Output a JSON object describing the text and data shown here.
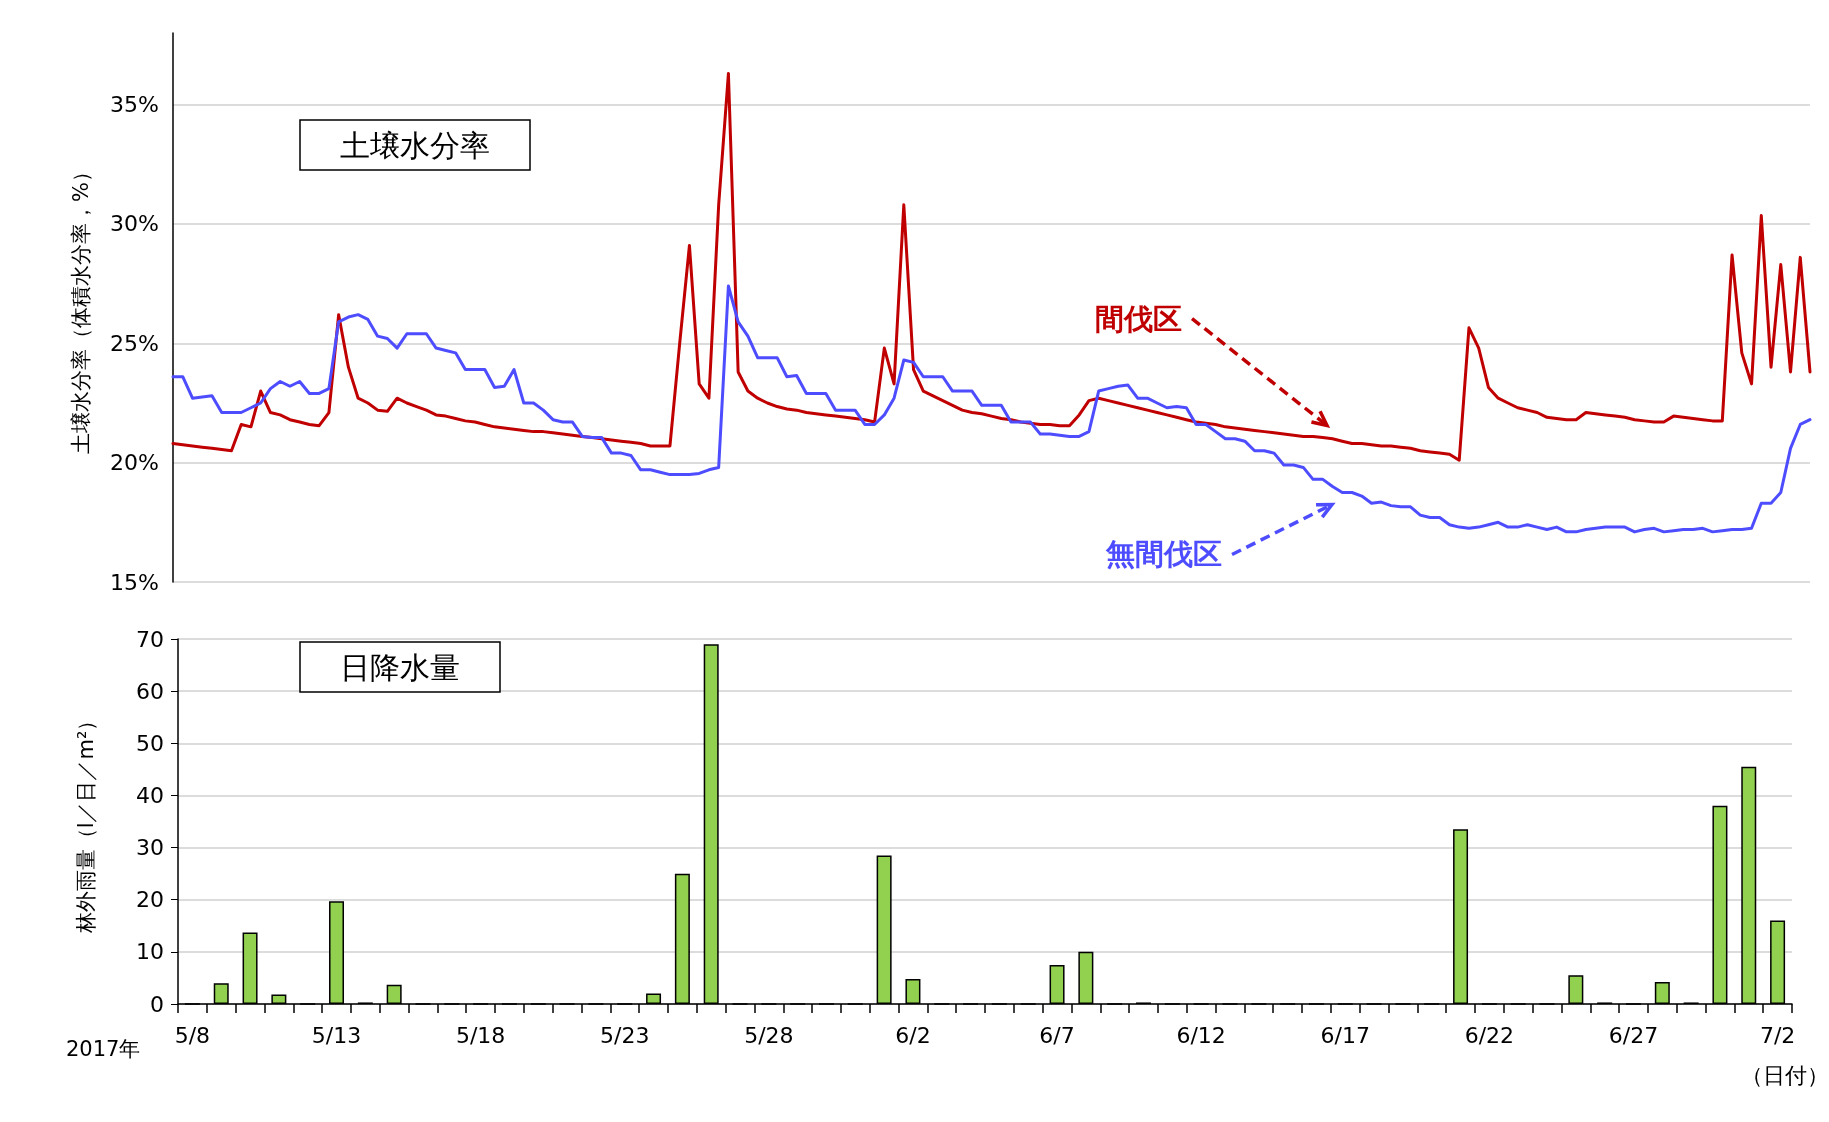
{
  "chart_data": [
    {
      "type": "line",
      "title": "土壌水分率",
      "ylabel": "土壌水分率（体積水分率，%）",
      "categories": [
        null,
        null,
        null,
        null,
        null,
        null,
        null,
        null,
        null,
        null,
        null,
        null,
        null,
        null,
        null,
        null,
        null,
        null,
        null,
        null,
        null,
        null,
        null,
        null,
        null,
        null,
        null,
        null,
        null,
        null,
        null,
        null,
        null,
        null,
        null,
        null,
        null,
        null,
        null,
        null,
        null,
        null,
        null,
        null,
        null,
        null,
        null,
        null,
        null,
        null,
        null,
        null,
        null,
        null,
        null,
        null,
        null,
        null,
        null,
        null,
        null,
        null,
        null,
        null,
        null,
        null,
        null,
        null,
        null,
        null,
        null,
        null,
        null,
        null,
        null,
        null,
        null,
        null,
        null,
        null,
        null,
        null,
        null,
        null,
        null,
        null,
        null,
        null,
        null,
        null,
        null,
        null,
        null,
        null,
        null,
        null,
        null,
        null,
        null,
        null,
        null,
        null,
        null,
        null,
        null,
        null,
        null,
        null,
        null,
        null,
        null,
        null,
        null,
        null,
        null,
        null,
        null,
        null,
        null,
        null,
        null,
        null,
        null,
        null,
        null,
        null,
        null,
        null,
        null,
        null,
        null,
        null,
        null,
        null,
        null,
        null,
        null,
        null,
        null,
        null,
        null,
        null,
        null,
        null,
        null,
        null,
        null,
        null,
        null,
        null,
        null,
        null,
        null,
        null,
        null,
        null,
        null,
        null,
        null,
        null,
        null,
        null,
        null,
        null,
        null,
        null,
        null,
        null,
        null
      ],
      "ylim": [
        15,
        38
      ],
      "yticks": [
        {
          "value": 15,
          "label": "15%"
        },
        {
          "value": 20,
          "label": "20%"
        },
        {
          "value": 25,
          "label": "25%"
        },
        {
          "value": 30,
          "label": "30%"
        },
        {
          "value": 35,
          "label": "35%"
        }
      ],
      "tick_labels": "y",
      "grid": "y",
      "legend": false,
      "line_style": "solid",
      "series": [
        {
          "name": "間伐区",
          "color": "#c00000",
          "values": [
            20.8,
            20.75,
            20.7,
            20.65,
            20.6,
            20.55,
            20.5,
            21.6,
            21.5,
            23.0,
            22.1,
            22.0,
            21.8,
            21.7,
            21.6,
            21.55,
            22.1,
            26.2,
            24.0,
            22.7,
            22.5,
            22.2,
            22.15,
            22.7,
            22.5,
            22.35,
            22.2,
            22.0,
            21.95,
            21.85,
            21.75,
            21.7,
            21.6,
            21.5,
            21.45,
            21.4,
            21.35,
            21.3,
            21.3,
            21.25,
            21.2,
            21.15,
            21.1,
            21.05,
            21.0,
            20.95,
            20.9,
            20.85,
            20.8,
            20.7,
            20.7,
            20.7,
            25.0,
            29.1,
            23.3,
            22.7,
            30.8,
            36.3,
            23.8,
            23.0,
            22.7,
            22.5,
            22.35,
            22.25,
            22.2,
            22.1,
            22.05,
            22.0,
            21.95,
            21.9,
            21.85,
            21.8,
            21.7,
            24.8,
            23.3,
            30.8,
            23.9,
            23.0,
            22.8,
            22.6,
            22.4,
            22.2,
            22.1,
            22.05,
            21.95,
            21.85,
            21.8,
            21.7,
            21.65,
            21.6,
            21.6,
            21.55,
            21.55,
            22.0,
            22.6,
            22.7,
            22.6,
            22.5,
            22.4,
            22.3,
            22.2,
            22.1,
            22.0,
            21.9,
            21.8,
            21.7,
            21.65,
            21.6,
            21.5,
            21.45,
            21.4,
            21.35,
            21.3,
            21.25,
            21.2,
            21.15,
            21.1,
            21.1,
            21.05,
            21.0,
            20.9,
            20.8,
            20.8,
            20.75,
            20.7,
            20.7,
            20.65,
            20.6,
            20.5,
            20.45,
            20.4,
            20.35,
            20.1,
            25.65,
            24.8,
            23.15,
            22.7,
            22.5,
            22.3,
            22.2,
            22.1,
            21.9,
            21.85,
            21.8,
            21.8,
            22.1,
            22.05,
            22.0,
            21.95,
            21.9,
            21.8,
            21.75,
            21.7,
            21.7,
            21.95,
            21.9,
            21.85,
            21.8,
            21.75,
            21.75,
            28.7,
            24.6,
            23.3,
            30.35,
            24.0,
            28.3,
            23.8,
            28.6,
            23.8
          ]
        },
        {
          "name": "無間伐区",
          "color": "#4d4dff",
          "values": [
            23.6,
            23.6,
            22.7,
            22.75,
            22.8,
            22.1,
            22.1,
            22.1,
            22.3,
            22.5,
            23.1,
            23.4,
            23.2,
            23.4,
            22.9,
            22.9,
            23.1,
            25.9,
            26.1,
            26.2,
            26.0,
            25.3,
            25.2,
            24.8,
            25.4,
            25.4,
            25.4,
            24.8,
            24.7,
            24.6,
            23.9,
            23.9,
            23.9,
            23.15,
            23.2,
            23.9,
            22.5,
            22.5,
            22.2,
            21.8,
            21.7,
            21.7,
            21.1,
            21.05,
            21.05,
            20.4,
            20.4,
            20.3,
            19.7,
            19.7,
            19.6,
            19.5,
            19.5,
            19.5,
            19.55,
            19.7,
            19.8,
            27.4,
            25.9,
            25.3,
            24.4,
            24.4,
            24.4,
            23.6,
            23.65,
            22.9,
            22.9,
            22.9,
            22.2,
            22.2,
            22.2,
            21.6,
            21.6,
            22.0,
            22.7,
            24.3,
            24.2,
            23.6,
            23.6,
            23.6,
            23.0,
            23.0,
            23.0,
            22.4,
            22.4,
            22.4,
            21.7,
            21.7,
            21.7,
            21.2,
            21.2,
            21.15,
            21.1,
            21.1,
            21.3,
            23.0,
            23.1,
            23.2,
            23.25,
            22.7,
            22.7,
            22.5,
            22.3,
            22.35,
            22.3,
            21.6,
            21.6,
            21.3,
            21.0,
            21.0,
            20.9,
            20.5,
            20.5,
            20.4,
            19.9,
            19.9,
            19.8,
            19.3,
            19.3,
            19.0,
            18.75,
            18.75,
            18.6,
            18.3,
            18.35,
            18.2,
            18.15,
            18.15,
            17.8,
            17.7,
            17.7,
            17.4,
            17.3,
            17.25,
            17.3,
            17.4,
            17.5,
            17.3,
            17.3,
            17.4,
            17.3,
            17.2,
            17.3,
            17.1,
            17.1,
            17.2,
            17.25,
            17.3,
            17.3,
            17.3,
            17.1,
            17.2,
            17.25,
            17.1,
            17.15,
            17.2,
            17.2,
            17.25,
            17.1,
            17.15,
            17.2,
            17.2,
            17.25,
            18.3,
            18.3,
            18.75,
            20.6,
            21.6,
            21.8
          ]
        }
      ]
    },
    {
      "type": "bar",
      "title": "日降水量",
      "ylabel": "林外雨量（l／日／m²）",
      "xlabel": "（日付）",
      "annotations": [
        "2017年"
      ],
      "categories": [
        "5/8",
        null,
        null,
        null,
        null,
        "5/13",
        null,
        null,
        null,
        null,
        "5/18",
        null,
        null,
        null,
        null,
        "5/23",
        null,
        null,
        null,
        null,
        "5/28",
        null,
        null,
        null,
        null,
        "6/2",
        null,
        null,
        null,
        null,
        "6/7",
        null,
        null,
        null,
        null,
        "6/12",
        null,
        null,
        null,
        null,
        "6/17",
        null,
        null,
        null,
        null,
        "6/22",
        null,
        null,
        null,
        null,
        "6/27",
        null,
        null,
        null,
        null,
        "7/2"
      ],
      "values": [
        0,
        4,
        13.7,
        1.8,
        0,
        19.7,
        0.3,
        3.7,
        0,
        0,
        0,
        0,
        0,
        0,
        0,
        0,
        2,
        25,
        69,
        0,
        0,
        0,
        0,
        0,
        28.5,
        4.8,
        0,
        0,
        0,
        0,
        7.5,
        10,
        0,
        0.3,
        0,
        0,
        0,
        0,
        0,
        0,
        0,
        0,
        0,
        0,
        33.5,
        0,
        0,
        0,
        5.5,
        0.3,
        0,
        4.2,
        0.3,
        38,
        45.5,
        16
      ],
      "color": "#92d050",
      "ylim": [
        0,
        70
      ],
      "yticks": [
        0,
        10,
        20,
        30,
        40,
        50,
        60,
        70
      ],
      "grid": "y",
      "legend": false
    }
  ]
}
